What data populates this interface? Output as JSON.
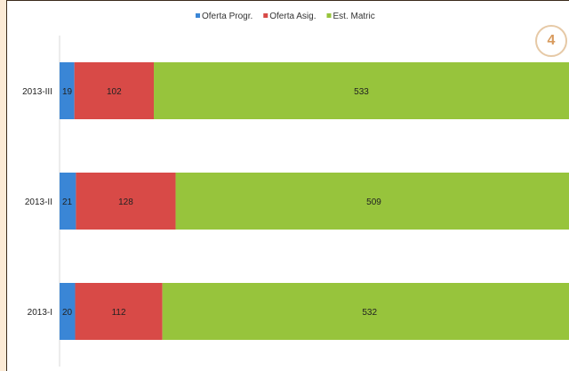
{
  "page_badge": "4",
  "chart_data": {
    "type": "bar",
    "orientation": "horizontal",
    "stacked": true,
    "categories": [
      "2013-III",
      "2013-II",
      "2013-I"
    ],
    "category_labels": [
      "2013-III",
      "2013-II",
      "2013-I"
    ],
    "series": [
      {
        "name": "Oferta Progr.",
        "color": "#3a86d6",
        "values": [
          19,
          21,
          20
        ]
      },
      {
        "name": "Oferta Asig.",
        "color": "#d84a47",
        "values": [
          102,
          128,
          112
        ]
      },
      {
        "name": "Est. Matric",
        "color": "#97c43c",
        "values": [
          533,
          509,
          532
        ]
      }
    ],
    "xlim": [
      0,
      654
    ],
    "legend_position": "top",
    "grid": false,
    "title": "",
    "xlabel": "",
    "ylabel": ""
  }
}
